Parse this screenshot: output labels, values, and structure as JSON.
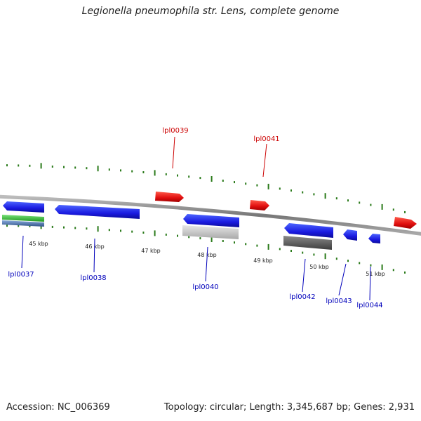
{
  "title": "Legionella pneumophila str. Lens, complete genome",
  "footer": {
    "accession": "Accession: NC_006369",
    "summary": "Topology: circular; Length: 3,345,687 bp; Genes: 2,931"
  },
  "colors": {
    "forward_gene": "#e01010",
    "reverse_gene": "#1a1ae0",
    "backbone": "#888888",
    "tick": "#2a7a1a",
    "forward_label": "#cc0000",
    "reverse_label": "#0000bb",
    "scale_label": "#222222",
    "green_feature": "#33bb33",
    "teal_feature": "#5588bb",
    "light_gray_feature": "#c8c8c8",
    "dark_gray_feature": "#666666"
  },
  "scale_labels": [
    "45 kbp",
    "46 kbp",
    "47 kbp",
    "48 kbp",
    "49 kbp",
    "50 kbp",
    "51 kbp"
  ],
  "forward_genes": [
    "lpl0039",
    "lpl0041"
  ],
  "reverse_genes": [
    "lpl0037",
    "lpl0038",
    "lpl0040",
    "lpl0042",
    "lpl0043",
    "lpl0044"
  ]
}
